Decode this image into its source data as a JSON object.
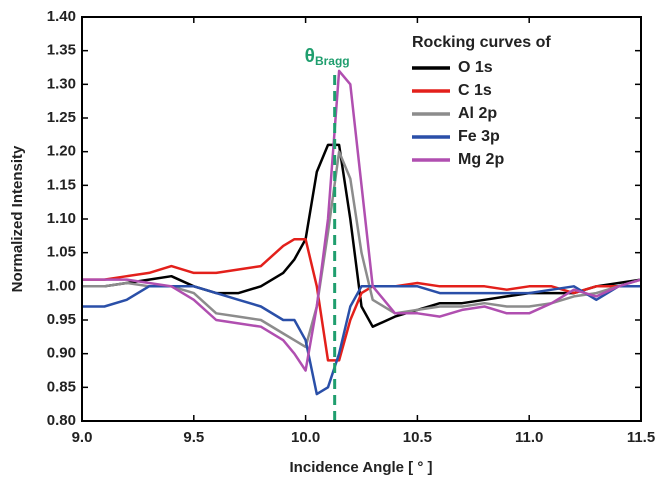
{
  "chart_data": {
    "type": "line",
    "x_label": "Incidence Angle [ ° ]",
    "y_label": "Normalized Intensity",
    "legend_title": "Rocking curves of",
    "legend": "upper right",
    "annotation": {
      "text": "θ",
      "subscript": "Bragg",
      "x": 10.13,
      "color": "#1f9e6e"
    },
    "x": [
      9.0,
      9.1,
      9.2,
      9.3,
      9.4,
      9.5,
      9.6,
      9.7,
      9.8,
      9.9,
      9.95,
      10.0,
      10.05,
      10.1,
      10.15,
      10.2,
      10.25,
      10.3,
      10.4,
      10.5,
      10.6,
      10.7,
      10.8,
      10.9,
      11.0,
      11.1,
      11.2,
      11.3,
      11.4,
      11.5
    ],
    "series": [
      {
        "name": "O 1s",
        "color": "#000000",
        "values": [
          1.0,
          1.0,
          1.005,
          1.01,
          1.015,
          1.0,
          0.99,
          0.99,
          1.0,
          1.02,
          1.04,
          1.07,
          1.17,
          1.21,
          1.21,
          1.1,
          0.97,
          0.94,
          0.955,
          0.965,
          0.975,
          0.975,
          0.98,
          0.985,
          0.99,
          0.99,
          0.99,
          1.0,
          1.005,
          1.01
        ]
      },
      {
        "name": "C 1s",
        "color": "#e3201b",
        "values": [
          1.01,
          1.01,
          1.015,
          1.02,
          1.03,
          1.02,
          1.02,
          1.025,
          1.03,
          1.06,
          1.07,
          1.07,
          1.0,
          0.89,
          0.89,
          0.95,
          0.99,
          1.0,
          1.0,
          1.005,
          1.0,
          1.0,
          1.0,
          0.995,
          1.0,
          1.0,
          0.99,
          1.0,
          1.0,
          1.0
        ]
      },
      {
        "name": "Al 2p",
        "color": "#8c8c8c",
        "values": [
          1.0,
          1.0,
          1.005,
          1.0,
          1.0,
          0.99,
          0.96,
          0.955,
          0.95,
          0.93,
          0.92,
          0.91,
          0.97,
          1.08,
          1.2,
          1.16,
          1.05,
          0.98,
          0.96,
          0.965,
          0.97,
          0.97,
          0.975,
          0.97,
          0.97,
          0.975,
          0.985,
          0.99,
          1.0,
          1.01
        ]
      },
      {
        "name": "Fe 3p",
        "color": "#2a4fa8",
        "values": [
          0.97,
          0.97,
          0.98,
          1.0,
          1.0,
          1.0,
          0.99,
          0.98,
          0.97,
          0.95,
          0.95,
          0.92,
          0.84,
          0.85,
          0.9,
          0.97,
          1.0,
          1.0,
          1.0,
          1.0,
          0.99,
          0.99,
          0.99,
          0.99,
          0.99,
          0.995,
          1.0,
          0.98,
          1.0,
          1.0
        ]
      },
      {
        "name": "Mg 2p",
        "color": "#b04fb0",
        "values": [
          1.01,
          1.01,
          1.01,
          1.005,
          1.0,
          0.98,
          0.95,
          0.945,
          0.94,
          0.92,
          0.9,
          0.875,
          0.97,
          1.1,
          1.32,
          1.3,
          1.15,
          1.0,
          0.96,
          0.96,
          0.955,
          0.965,
          0.97,
          0.96,
          0.96,
          0.975,
          0.995,
          0.985,
          1.0,
          1.01
        ]
      }
    ],
    "xlim": [
      9.0,
      11.5
    ],
    "xticks": [
      {
        "value": 9.0,
        "label": "9.0"
      },
      {
        "value": 9.5,
        "label": "9.5"
      },
      {
        "value": 10.0,
        "label": "10.0"
      },
      {
        "value": 10.5,
        "label": "10.5"
      },
      {
        "value": 11.0,
        "label": "11.0"
      },
      {
        "value": 11.5,
        "label": "11.5"
      }
    ],
    "ylim": [
      0.8,
      1.4
    ],
    "yticks": [
      {
        "value": 0.8,
        "label": "0.80"
      },
      {
        "value": 0.85,
        "label": "0.85"
      },
      {
        "value": 0.9,
        "label": "0.90"
      },
      {
        "value": 0.95,
        "label": "0.95"
      },
      {
        "value": 1.0,
        "label": "1.00"
      },
      {
        "value": 1.05,
        "label": "1.05"
      },
      {
        "value": 1.1,
        "label": "1.10"
      },
      {
        "value": 1.15,
        "label": "1.15"
      },
      {
        "value": 1.2,
        "label": "1.20"
      },
      {
        "value": 1.25,
        "label": "1.25"
      },
      {
        "value": 1.3,
        "label": "1.30"
      },
      {
        "value": 1.35,
        "label": "1.35"
      },
      {
        "value": 1.4,
        "label": "1.40"
      }
    ]
  }
}
